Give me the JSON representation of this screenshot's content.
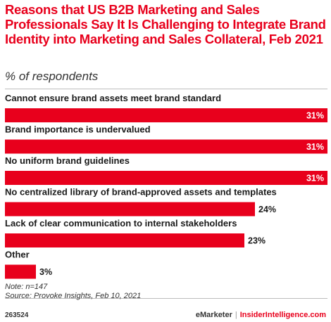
{
  "title": "Reasons that US B2B Marketing and Sales Professionals Say It Is Challenging to Integrate Brand Identity into Marketing and Sales Collateral, Feb 2021",
  "subtitle": "% of respondents",
  "colors": {
    "accent": "#e8001c",
    "bar": "#e8001c",
    "text": "#1a1a1a"
  },
  "chart_data": {
    "type": "bar",
    "orientation": "horizontal",
    "categories": [
      "Cannot ensure brand assets meet brand standard",
      "Brand importance is undervalued",
      "No uniform brand guidelines",
      "No centralized library of brand-approved assets and templates",
      "Lack of clear communication to internal stakeholders",
      "Other"
    ],
    "values": [
      31,
      31,
      31,
      24,
      23,
      3
    ],
    "value_labels": [
      "31%",
      "31%",
      "31%",
      "24%",
      "23%",
      "3%"
    ],
    "unit": "%",
    "xlim": [
      0,
      31
    ],
    "grid": false,
    "legend": "none"
  },
  "notes": {
    "note": "Note: n=147",
    "source": "Source: Provoke Insights, Feb 10, 2021"
  },
  "footer": {
    "id": "263524",
    "brand_left": "eMarketer",
    "separator": "|",
    "brand_right": "InsiderIntelligence.com"
  }
}
